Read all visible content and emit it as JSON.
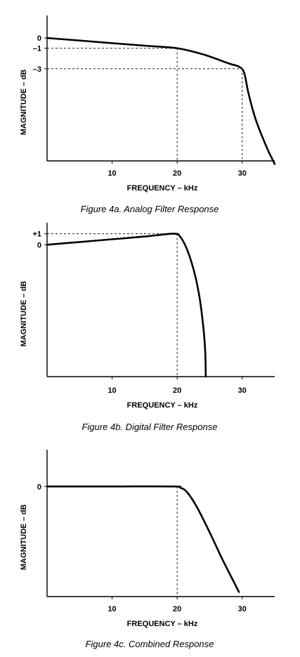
{
  "chart_data": [
    {
      "type": "line",
      "title": "Figure 4a. Analog Filter Response",
      "xlabel": "FREQUENCY – kHz",
      "ylabel": "MAGNITUDE – dB",
      "x_ticks": [
        10,
        20,
        30
      ],
      "y_ticks": [
        {
          "value": 0,
          "label": "0"
        },
        {
          "value": -1,
          "label": "–1"
        },
        {
          "value": -3,
          "label": "–3"
        }
      ],
      "xlim": [
        0,
        35
      ],
      "ylim": [
        -12,
        2.2
      ],
      "grid": false,
      "series": [
        {
          "x": [
            0,
            5,
            10,
            15,
            20,
            24,
            28,
            29.5,
            30.3,
            31,
            32,
            33,
            34,
            35
          ],
          "values": [
            0,
            -0.25,
            -0.5,
            -0.75,
            -1.0,
            -1.6,
            -2.5,
            -2.8,
            -3.4,
            -5.5,
            -7.8,
            -9.5,
            -11,
            -12.3
          ]
        }
      ],
      "reference_lines": [
        {
          "x": 20,
          "y": -1
        },
        {
          "x": 30,
          "y": -3
        }
      ]
    },
    {
      "type": "line",
      "title": "Figure 4b. Digital Filter Response",
      "xlabel": "FREQUENCY – kHz",
      "ylabel": "MAGNITUDE – dB",
      "x_ticks": [
        10,
        20,
        30
      ],
      "y_ticks": [
        {
          "value": 1,
          "label": "+1"
        },
        {
          "value": 0,
          "label": "0"
        }
      ],
      "xlim": [
        0,
        35
      ],
      "ylim": [
        -12,
        2
      ],
      "grid": false,
      "series": [
        {
          "x": [
            0,
            5,
            10,
            15,
            19.5,
            20.5,
            21.5,
            22.5,
            23.3,
            23.9,
            24.3,
            24.4
          ],
          "values": [
            0,
            0.25,
            0.5,
            0.75,
            1.0,
            0.7,
            -0.4,
            -2.2,
            -4.3,
            -6.8,
            -9.5,
            -12
          ]
        }
      ],
      "reference_lines": [
        {
          "x": 20,
          "y": 1
        }
      ]
    },
    {
      "type": "line",
      "title": "Figure 4c. Combined Response",
      "xlabel": "FREQUENCY – kHz",
      "ylabel": "MAGNITUDE – dB",
      "x_ticks": [
        10,
        20,
        30
      ],
      "y_ticks": [
        {
          "value": 0,
          "label": "0"
        }
      ],
      "xlim": [
        0,
        35
      ],
      "ylim": [
        -12,
        4
      ],
      "grid": false,
      "series": [
        {
          "x": [
            0,
            10,
            19.5,
            20.5,
            21.5,
            23,
            25,
            27,
            29.5
          ],
          "values": [
            0,
            0,
            0,
            -0.15,
            -0.6,
            -2.2,
            -5,
            -8,
            -11.5
          ]
        }
      ],
      "reference_lines": [
        {
          "x": 20,
          "y": 0
        }
      ]
    }
  ]
}
